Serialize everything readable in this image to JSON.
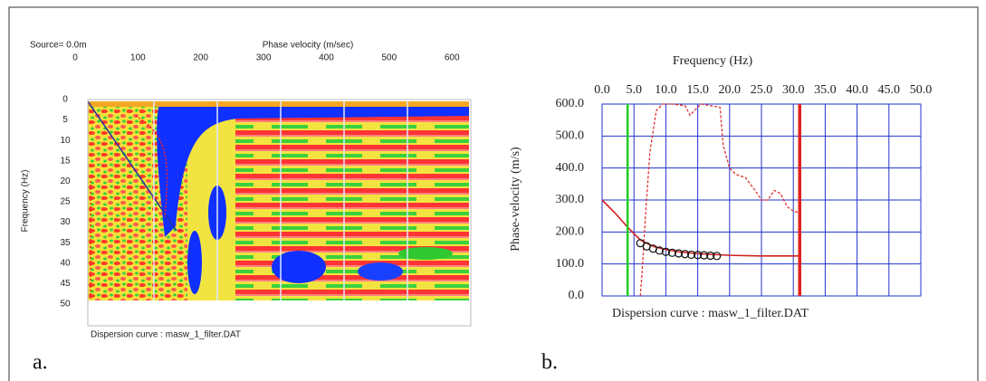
{
  "chart_data": [
    {
      "type": "heatmap",
      "panel_label": "a.",
      "xlabel": "Phase velocity (m/sec)",
      "ylabel": "Frequency (Hz)",
      "annotations": [
        "Source= 0.0m",
        "Dispersion curve : masw_1_filter.DAT"
      ],
      "xlim": [
        0,
        630
      ],
      "xticks": [
        0,
        100,
        200,
        300,
        400,
        500,
        600
      ],
      "ylim": [
        0,
        50
      ],
      "yticks": [
        0,
        5,
        10,
        15,
        20,
        25,
        30,
        35,
        40,
        45,
        50
      ]
    },
    {
      "type": "line",
      "panel_label": "b.",
      "xlabel": "Frequency (Hz)",
      "ylabel": "Phase-velocity (m/s)",
      "annotations": [
        "Dispersion curve : masw_1_filter.DAT"
      ],
      "xlim": [
        0,
        50
      ],
      "xticks": [
        {
          "value": 0,
          "label": "0.0"
        },
        {
          "value": 5,
          "label": "5.0"
        },
        {
          "value": 10,
          "label": "10.0"
        },
        {
          "value": 15,
          "label": "15.0"
        },
        {
          "value": 20,
          "label": "20.0"
        },
        {
          "value": 25,
          "label": "25.0"
        },
        {
          "value": 30,
          "label": "30.0"
        },
        {
          "value": 35,
          "label": "35.0"
        },
        {
          "value": 40,
          "label": "40.0"
        },
        {
          "value": 45,
          "label": "45.0"
        },
        {
          "value": 50,
          "label": "50.0"
        }
      ],
      "ylim": [
        0,
        600
      ],
      "yticks": [
        {
          "value": 0,
          "label": "0.0"
        },
        {
          "value": 100,
          "label": "100.0"
        },
        {
          "value": 200,
          "label": "200.0"
        },
        {
          "value": 300,
          "label": "300.0"
        },
        {
          "value": 400,
          "label": "400.0"
        },
        {
          "value": 500,
          "label": "500.0"
        },
        {
          "value": 600,
          "label": "600.0"
        }
      ],
      "grid": true,
      "grid_color": "#2233cc",
      "vlines": [
        {
          "x": 4.0,
          "color": "#22cc22"
        },
        {
          "x": 31.0,
          "color": "#e02020"
        }
      ],
      "series": [
        {
          "style": "solid",
          "color": "#d02020",
          "x": [
            0,
            2,
            4,
            6,
            8,
            10,
            12,
            15,
            20,
            25,
            31
          ],
          "values": [
            300,
            260,
            215,
            175,
            155,
            145,
            138,
            132,
            127,
            125,
            125
          ]
        },
        {
          "style": "dotted",
          "color": "#e03030",
          "x": [
            6.0,
            6.3,
            6.8,
            7.5,
            8.5,
            9.5,
            11,
            13,
            13.8,
            14.5,
            15.5,
            17,
            18.5,
            19,
            20,
            21,
            22.5,
            24,
            25,
            26,
            27,
            28,
            29,
            30,
            31
          ],
          "values": [
            0,
            80,
            250,
            450,
            580,
            600,
            600,
            595,
            565,
            580,
            600,
            595,
            590,
            470,
            400,
            380,
            370,
            330,
            300,
            300,
            330,
            320,
            280,
            265,
            260
          ]
        },
        {
          "style": "markers",
          "color": "#111111",
          "x": [
            6,
            7,
            8,
            9,
            10,
            11,
            12,
            13,
            14,
            15,
            16,
            17,
            18
          ],
          "values": [
            165,
            155,
            148,
            142,
            138,
            135,
            133,
            131,
            129,
            128,
            127,
            126,
            125
          ]
        }
      ]
    }
  ]
}
